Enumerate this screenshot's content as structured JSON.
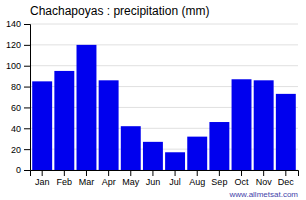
{
  "chart_data": {
    "type": "bar",
    "title": "Chachapoyas : precipitation (mm)",
    "categories": [
      "Jan",
      "Feb",
      "Mar",
      "Apr",
      "May",
      "Jun",
      "Jul",
      "Aug",
      "Sep",
      "Oct",
      "Nov",
      "Dec"
    ],
    "values": [
      85,
      95,
      120,
      86,
      42,
      27,
      17,
      32,
      46,
      87,
      86,
      73
    ],
    "color": "#0000ee",
    "ylim": [
      0,
      140
    ],
    "yticks": [
      0,
      20,
      40,
      60,
      80,
      100,
      120,
      140
    ],
    "grid": true,
    "annotations": [
      "www.allmetsat.com"
    ]
  }
}
